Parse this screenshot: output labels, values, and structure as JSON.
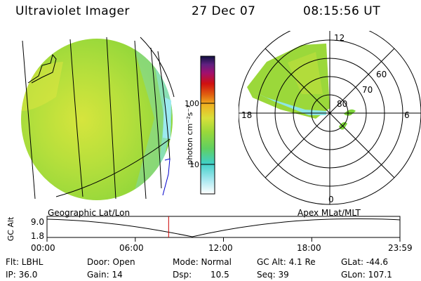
{
  "header": {
    "instrument": "Ultraviolet Imager",
    "date": "27 Dec 07",
    "time": "08:15:56 UT"
  },
  "colorbar": {
    "unit_label": "photon cm⁻²s⁻¹",
    "ticks": [
      "100",
      "10"
    ]
  },
  "polar_plot": {
    "mlt_labels": [
      "12",
      "18",
      "6",
      "0"
    ],
    "mlat_labels": [
      "60",
      "70",
      "80"
    ]
  },
  "timeline": {
    "left_caption": "Geographic Lat/Lon",
    "right_caption": "Apex MLat/MLT",
    "axis_label": "GC Alt",
    "y_ticks": [
      "9.0",
      "1.8"
    ],
    "x_ticks": [
      "00:00",
      "06:00",
      "12:00",
      "18:00",
      "23:59"
    ],
    "cursor_hour": 8.27
  },
  "status": {
    "filter": "Flt: LBHL",
    "ip": "IP: 36.0",
    "door": "Door: Open",
    "gain": "Gain: 14",
    "mode": "Mode: Normal",
    "dsp_label": "Dsp:",
    "dsp_value": "10.5",
    "gc_alt": "GC Alt: 4.1 Re",
    "seq": "Seq: 39",
    "glat": "GLat: -44.6",
    "glon": "GLon: 107.1"
  },
  "colors": {
    "cursor": "#cc0000",
    "auroral_green": "#7ed63a",
    "disk_yellow_green": "#b5df3c"
  }
}
